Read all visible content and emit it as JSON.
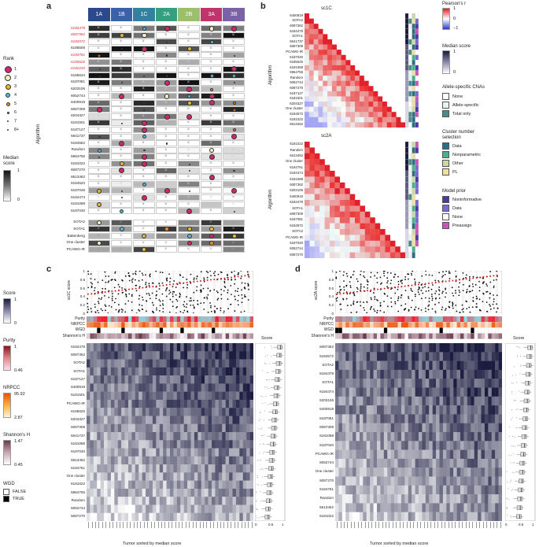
{
  "figure": {
    "labels": {
      "a": "a",
      "b": "b",
      "c": "c",
      "d": "d"
    },
    "legend_rank": {
      "title": "Rank",
      "items": [
        "1",
        "2",
        "3",
        "4",
        "5",
        "6",
        "7",
        "8+"
      ],
      "colors": [
        "#d6246e",
        "#f2ecc0",
        "#e6b92a",
        "#53b9d4",
        "#f08a1f",
        "#555",
        "#555",
        "#555"
      ]
    },
    "legend_median": {
      "title": "Median\nscore",
      "max": "1",
      "min": "0"
    }
  },
  "panel_a": {
    "groups": [
      {
        "label": "1A",
        "color": "#2b4a8b"
      },
      {
        "label": "1B",
        "color": "#3a62a8"
      },
      {
        "label": "1C",
        "color": "#3480a0"
      },
      {
        "label": "2A",
        "color": "#34a080"
      },
      {
        "label": "2B",
        "color": "#9bbf6a"
      },
      {
        "label": "3A",
        "color": "#c0346c"
      },
      {
        "label": "3B",
        "color": "#7b62a8"
      }
    ],
    "ylabel": "Algorithm",
    "rows": [
      "6184478",
      "6087362",
      "6184572",
      "6185506",
      "6184761",
      "6185626",
      "6182210",
      "6185634",
      "6187081",
      "6203106",
      "6052744",
      "6400919",
      "6087309",
      "6204327",
      "6181501",
      "6187127",
      "5641737",
      "6184552",
      "Random",
      "5964755",
      "6181022",
      "6087270",
      "6613462",
      "6184520",
      "6187045",
      "6184474",
      "6181088",
      "6187040"
    ],
    "red_rows": [
      0,
      1,
      2,
      4,
      5,
      6
    ],
    "bottom_rows": [
      "SOTA2",
      "SOTA1",
      "Battenberg",
      "One cluster",
      "PCAWG-IR"
    ]
  },
  "panel_b": {
    "title1": "sc1C",
    "title2": "sc2A",
    "ylabel": "Algorithm",
    "rows1": [
      "6400919",
      "SOTA2",
      "6087362",
      "6184478",
      "SOTA1",
      "5641737",
      "6087309",
      "PCAWG-IR",
      "6187040",
      "6185626",
      "6181088",
      "5964755",
      "Random",
      "6052744",
      "6087270",
      "6187127",
      "6181501",
      "6204327",
      "One cluster",
      "6184572",
      "6181022",
      "6613462"
    ],
    "rows2": [
      "6181022",
      "Random",
      "6613462",
      "One cluster",
      "6184761",
      "6184474",
      "6181088",
      "6087362",
      "6203106",
      "6400919",
      "6184478",
      "SOTA1",
      "6087309",
      "6187081",
      "6184572",
      "SOTA2",
      "PCAWG-IR",
      "6187040",
      "6052744",
      "6087270"
    ]
  },
  "legend_b": {
    "pearson": {
      "title": "Pearson's r",
      "ticks": [
        "1",
        "0",
        "−1"
      ]
    },
    "median": {
      "title": "Median score",
      "ticks": [
        "1",
        "0"
      ]
    },
    "cna": {
      "title": "Allele-specific CNAs",
      "items": [
        {
          "label": "None",
          "color": "#ffffff"
        },
        {
          "label": "Allele-specific",
          "color": "#e6f3f1"
        },
        {
          "label": "Total only",
          "color": "#4c8a87"
        }
      ]
    },
    "cluster": {
      "title": "Cluster number\nselection",
      "items": [
        {
          "label": "Data",
          "color": "#2d6e86"
        },
        {
          "label": "Nonparametric",
          "color": "#48b08e"
        },
        {
          "label": "Other",
          "color": "#c8d8a8"
        },
        {
          "label": "PL",
          "color": "#f0dfa0"
        }
      ]
    },
    "prior": {
      "title": "Model prior",
      "items": [
        {
          "label": "Noninformative",
          "color": "#4a3aa8"
        },
        {
          "label": "Data",
          "color": "#7a6ad0"
        },
        {
          "label": "None",
          "color": "#ffffff"
        },
        {
          "label": "Preassign",
          "color": "#c858b8"
        }
      ]
    }
  },
  "panel_c": {
    "score_ylabel": "sc1C score",
    "xlabel": "Tumor sorted by median score",
    "score_label": "Score",
    "annot": [
      "Purity",
      "NRPCC",
      "WGD",
      "Shannon's H"
    ],
    "rows": [
      "6184478",
      "6087362",
      "SOTA2",
      "SOTA1",
      "6187127",
      "6400919",
      "6181501",
      "PCAWG-IR",
      "6185626",
      "6204327",
      "6087309",
      "5641737",
      "6181088",
      "6187040",
      "6613462",
      "6184761",
      "One cluster",
      "6181022",
      "5964755",
      "Random",
      "6052744",
      "6087270"
    ],
    "yticks": [
      "1",
      "0.8",
      "0.6",
      "0.4",
      "0.2",
      "0"
    ],
    "xticks": [
      "0",
      "0.5",
      "1"
    ]
  },
  "panel_d": {
    "score_ylabel": "sc2A score",
    "xlabel": "Tumor sorted by median score",
    "score_label": "Score",
    "annot": [
      "Purity",
      "NRPCC",
      "WGD",
      "Shannon's H"
    ],
    "rows": [
      "6087362",
      "6184572",
      "SOTA2",
      "6184478",
      "SOTA1",
      "6184474",
      "6203106",
      "6400919",
      "6187081",
      "6087309",
      "6181088",
      "6187040",
      "PCAWG-IR",
      "6052744",
      "One cluster",
      "6087270",
      "6184761",
      "Random",
      "6613462",
      "6181022"
    ],
    "yticks": [
      "1",
      "0.8",
      "0.6",
      "0.4",
      "0.2",
      "0"
    ],
    "xticks": [
      "0",
      "0.5",
      "1"
    ]
  },
  "legend_c": {
    "score": {
      "title": "Score",
      "max": "1",
      "min": "0"
    },
    "purity": {
      "title": "Purity",
      "max": "1",
      "min": "0.46"
    },
    "nrpcc": {
      "title": "NRPCC",
      "max": "95.92",
      "min": "2.87"
    },
    "shannon": {
      "title": "Shannon's H",
      "max": "1.47",
      "min": "0.45"
    },
    "wgd": {
      "title": "WGD",
      "items": [
        {
          "label": "FALSE",
          "color": "#ffffff"
        },
        {
          "label": "TRUE",
          "color": "#000000"
        }
      ]
    }
  }
}
